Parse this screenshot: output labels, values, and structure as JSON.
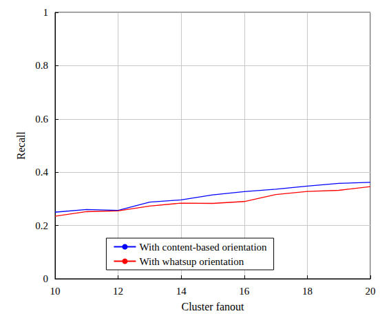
{
  "chart_data": {
    "type": "line",
    "x_label": "Cluster fanout",
    "y_label": "Recall",
    "x": [
      10,
      11,
      12,
      13,
      14,
      15,
      16,
      17,
      18,
      19,
      20
    ],
    "series": [
      {
        "name": "With content-based orientation",
        "color": "#0000ff",
        "values": [
          0.25,
          0.26,
          0.257,
          0.288,
          0.296,
          0.315,
          0.327,
          0.336,
          0.348,
          0.358,
          0.362
        ]
      },
      {
        "name": "With whatsup orientation",
        "color": "#ff0000",
        "values": [
          0.235,
          0.252,
          0.255,
          0.273,
          0.284,
          0.283,
          0.29,
          0.316,
          0.328,
          0.332,
          0.346
        ]
      }
    ],
    "xlim": [
      10,
      20
    ],
    "xticks": [
      10,
      12,
      14,
      16,
      18,
      20
    ],
    "ylim": [
      0,
      1
    ],
    "yticks": [
      0,
      0.2,
      0.4,
      0.6,
      0.8,
      1
    ],
    "grid": true,
    "legend": "lower center"
  }
}
